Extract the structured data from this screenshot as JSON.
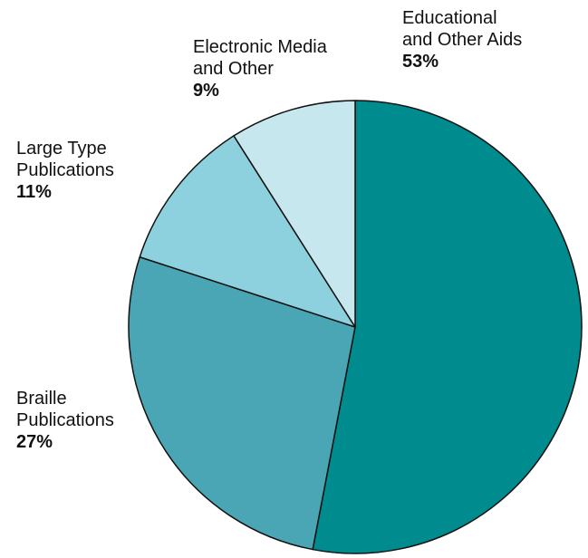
{
  "chart_data": {
    "type": "pie",
    "start_angle_deg": 0,
    "direction": "clockwise",
    "slices": [
      {
        "label": "Educational\nand Other Aids",
        "value": 53,
        "pct_label": "53%",
        "color": "#008b8f"
      },
      {
        "label": "Braille\nPublications",
        "value": 27,
        "pct_label": "27%",
        "color": "#4aa6b4"
      },
      {
        "label": "Large Type\nPublications",
        "value": 11,
        "pct_label": "11%",
        "color": "#8dd0de"
      },
      {
        "label": "Electronic Media\nand Other",
        "value": 9,
        "pct_label": "9%",
        "color": "#c6e7ee"
      }
    ],
    "slice_border_color": "#111111"
  }
}
